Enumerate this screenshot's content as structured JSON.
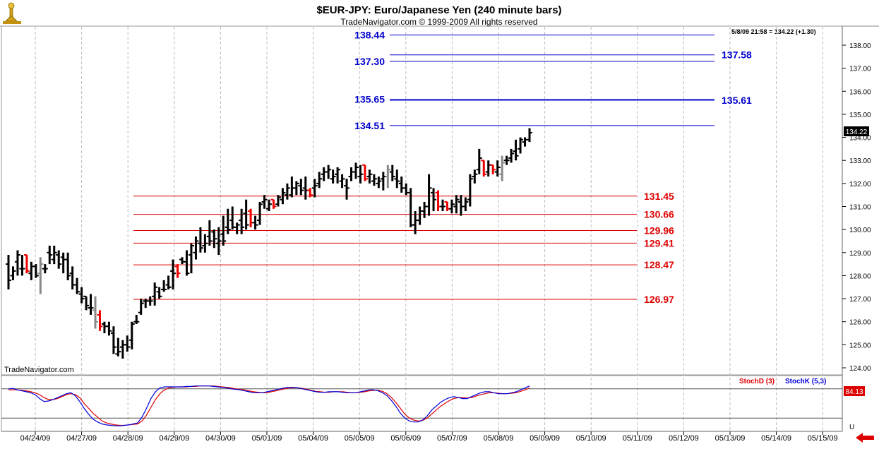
{
  "header": {
    "title": "$EUR-JPY:  Euro/Japanese Yen  (240 minute bars)",
    "copyright": "TradeNavigator.com © 1999-2009 All rights reserved",
    "readout": "5/8/09 21:58 = 134.22 (+1.30)",
    "watermark": "TradeNavigator.com"
  },
  "colors": {
    "blue_level": "#0000cc",
    "red_level": "#dd0000",
    "bar_up": "#000000",
    "bar_down": "#ee0000",
    "bar_neutral": "#888888",
    "grid": "#bbbbbb",
    "stoch_d": "#dd0000",
    "stoch_k": "#0000dd"
  },
  "chart_data": {
    "type": "ohlc",
    "y_axis": {
      "min": 123.6,
      "max": 138.5,
      "ticks": [
        "124.00",
        "125.00",
        "126.00",
        "127.00",
        "128.00",
        "129.00",
        "130.00",
        "131.00",
        "132.00",
        "133.00",
        "134.00",
        "135.00",
        "136.00",
        "137.00",
        "138.00"
      ]
    },
    "x_labels": [
      "04/24/09",
      "04/27/09",
      "04/28/09",
      "04/29/09",
      "04/30/09",
      "05/01/09",
      "05/04/09",
      "05/05/09",
      "05/06/09",
      "05/07/09",
      "05/08/09",
      "05/09/09",
      "05/10/09",
      "05/11/09",
      "05/12/09",
      "05/13/09",
      "05/14/09",
      "05/15/09"
    ],
    "last_price": "134.22",
    "bars": [
      [
        128.5,
        128.9,
        127.4,
        127.8,
        "k"
      ],
      [
        128.0,
        128.4,
        127.8,
        128.2,
        "k"
      ],
      [
        128.6,
        129.1,
        128.0,
        128.9,
        "k"
      ],
      [
        128.3,
        128.9,
        128.0,
        128.3,
        "k"
      ],
      [
        128.9,
        128.9,
        128.1,
        128.2,
        "r"
      ],
      [
        128.1,
        128.6,
        127.8,
        128.4,
        "k"
      ],
      [
        128.4,
        128.5,
        127.9,
        128.0,
        "k"
      ],
      [
        128.1,
        128.8,
        127.2,
        128.5,
        "g"
      ],
      [
        128.3,
        128.5,
        128.1,
        128.3,
        "k"
      ],
      [
        129.0,
        129.3,
        128.5,
        128.9,
        "k"
      ],
      [
        128.7,
        129.3,
        128.5,
        129.0,
        "k"
      ],
      [
        128.9,
        129.1,
        128.3,
        128.5,
        "k"
      ],
      [
        128.8,
        129.0,
        128.1,
        128.7,
        "k"
      ],
      [
        128.7,
        129.0,
        127.8,
        128.0,
        "k"
      ],
      [
        128.1,
        128.4,
        127.4,
        127.6,
        "k"
      ],
      [
        127.6,
        127.9,
        127.2,
        127.3,
        "k"
      ],
      [
        127.2,
        127.5,
        126.8,
        127.0,
        "k"
      ],
      [
        127.1,
        127.1,
        126.5,
        126.7,
        "k"
      ],
      [
        126.6,
        127.2,
        126.3,
        126.6,
        "k"
      ],
      [
        126.5,
        127.1,
        125.7,
        126.0,
        "g"
      ],
      [
        126.3,
        126.5,
        125.6,
        125.8,
        "r"
      ],
      [
        125.9,
        126.0,
        125.5,
        125.8,
        "k"
      ],
      [
        125.8,
        126.0,
        125.4,
        125.6,
        "k"
      ],
      [
        125.5,
        125.8,
        124.6,
        124.9,
        "k"
      ],
      [
        124.6,
        125.3,
        124.5,
        124.7,
        "k"
      ],
      [
        124.9,
        125.2,
        124.4,
        125.0,
        "k"
      ],
      [
        125.0,
        125.4,
        124.7,
        124.9,
        "k"
      ],
      [
        125.2,
        126.0,
        124.8,
        125.9,
        "k"
      ],
      [
        126.0,
        126.3,
        125.9,
        126.0,
        "k"
      ],
      [
        126.4,
        127.0,
        126.3,
        126.8,
        "k"
      ],
      [
        126.9,
        127.0,
        126.6,
        126.9,
        "k"
      ],
      [
        126.9,
        127.1,
        126.7,
        126.9,
        "k"
      ],
      [
        127.1,
        127.7,
        126.7,
        127.5,
        "k"
      ],
      [
        127.3,
        127.5,
        127.0,
        127.1,
        "k"
      ],
      [
        127.4,
        127.8,
        127.3,
        127.4,
        "k"
      ],
      [
        127.6,
        128.0,
        127.4,
        127.5,
        "k"
      ],
      [
        128.2,
        128.7,
        127.4,
        128.1,
        "k"
      ],
      [
        128.4,
        128.5,
        127.9,
        128.1,
        "r"
      ],
      [
        128.7,
        128.8,
        128.5,
        128.6,
        "k"
      ],
      [
        128.6,
        129.1,
        128.0,
        128.1,
        "k"
      ],
      [
        128.9,
        129.4,
        128.1,
        129.3,
        "k"
      ],
      [
        129.0,
        129.7,
        128.7,
        129.5,
        "k"
      ],
      [
        129.4,
        130.1,
        129.0,
        129.2,
        "k"
      ],
      [
        129.3,
        129.8,
        129.0,
        129.4,
        "k"
      ],
      [
        129.7,
        130.4,
        129.3,
        129.5,
        "k"
      ],
      [
        129.9,
        130.0,
        129.2,
        129.6,
        "k"
      ],
      [
        129.4,
        130.1,
        128.9,
        129.5,
        "k"
      ],
      [
        129.8,
        130.6,
        129.3,
        129.5,
        "k"
      ],
      [
        130.1,
        130.9,
        129.8,
        130.0,
        "k"
      ],
      [
        130.4,
        131.0,
        130.0,
        130.1,
        "k"
      ],
      [
        130.1,
        130.3,
        129.8,
        130.2,
        "k"
      ],
      [
        130.4,
        130.9,
        129.8,
        130.1,
        "k"
      ],
      [
        130.7,
        131.3,
        130.0,
        130.2,
        "k"
      ],
      [
        130.8,
        130.9,
        130.1,
        130.3,
        "r"
      ],
      [
        130.3,
        130.6,
        130.0,
        130.2,
        "k"
      ],
      [
        130.4,
        131.2,
        130.2,
        131.1,
        "k"
      ],
      [
        131.2,
        131.5,
        130.9,
        131.3,
        "k"
      ],
      [
        130.9,
        131.3,
        130.8,
        131.1,
        "k"
      ],
      [
        131.3,
        131.3,
        130.9,
        131.0,
        "r"
      ],
      [
        131.1,
        131.5,
        131.0,
        131.4,
        "k"
      ],
      [
        131.3,
        131.8,
        131.1,
        131.6,
        "k"
      ],
      [
        131.5,
        132.0,
        131.3,
        131.8,
        "k"
      ],
      [
        131.5,
        132.3,
        131.4,
        131.8,
        "k"
      ],
      [
        131.8,
        132.1,
        131.5,
        132.0,
        "k"
      ],
      [
        131.9,
        132.2,
        131.5,
        131.7,
        "k"
      ],
      [
        131.8,
        132.3,
        131.3,
        131.7,
        "k"
      ],
      [
        131.7,
        131.8,
        131.4,
        131.5,
        "r"
      ],
      [
        131.8,
        132.2,
        131.4,
        131.9,
        "k"
      ],
      [
        132.0,
        132.5,
        131.8,
        132.2,
        "k"
      ],
      [
        132.4,
        132.7,
        132.1,
        132.5,
        "k"
      ],
      [
        132.5,
        132.8,
        132.2,
        132.6,
        "k"
      ],
      [
        132.2,
        132.6,
        132.0,
        132.3,
        "k"
      ],
      [
        132.4,
        132.7,
        132.0,
        132.6,
        "k"
      ],
      [
        132.1,
        132.4,
        131.8,
        132.2,
        "k"
      ],
      [
        131.9,
        132.2,
        131.3,
        131.8,
        "k"
      ],
      [
        132.3,
        132.7,
        132.1,
        132.5,
        "k"
      ],
      [
        132.5,
        132.9,
        132.2,
        132.7,
        "k"
      ],
      [
        132.3,
        132.8,
        132.0,
        132.4,
        "k"
      ],
      [
        132.8,
        132.8,
        132.1,
        132.2,
        "r"
      ],
      [
        132.3,
        132.6,
        132.0,
        132.4,
        "k"
      ],
      [
        132.1,
        132.4,
        131.9,
        132.2,
        "k"
      ],
      [
        132.0,
        132.3,
        131.8,
        132.1,
        "k"
      ],
      [
        132.2,
        132.5,
        131.7,
        132.3,
        "k"
      ],
      [
        132.3,
        132.8,
        131.8,
        132.6,
        "g"
      ],
      [
        132.5,
        132.8,
        132.1,
        132.3,
        "k"
      ],
      [
        132.2,
        132.6,
        131.8,
        132.1,
        "k"
      ],
      [
        132.0,
        132.3,
        131.6,
        131.8,
        "k"
      ],
      [
        131.8,
        132.0,
        131.5,
        131.6,
        "k"
      ],
      [
        131.6,
        131.8,
        130.1,
        130.2,
        "k"
      ],
      [
        130.2,
        130.8,
        129.8,
        130.4,
        "k"
      ],
      [
        130.4,
        131.0,
        130.2,
        130.8,
        "k"
      ],
      [
        130.8,
        131.2,
        130.5,
        131.0,
        "k"
      ],
      [
        131.0,
        132.4,
        130.6,
        131.8,
        "k"
      ],
      [
        131.6,
        131.8,
        130.8,
        131.3,
        "k"
      ],
      [
        131.6,
        131.7,
        130.8,
        131.0,
        "r"
      ],
      [
        131.0,
        131.3,
        130.8,
        131.0,
        "k"
      ],
      [
        131.2,
        131.2,
        130.8,
        130.9,
        "r"
      ],
      [
        130.9,
        131.3,
        130.7,
        131.1,
        "k"
      ],
      [
        131.0,
        131.5,
        130.7,
        131.3,
        "k"
      ],
      [
        131.2,
        131.5,
        130.6,
        131.0,
        "k"
      ],
      [
        131.0,
        131.4,
        130.8,
        131.2,
        "k"
      ],
      [
        131.3,
        132.4,
        131.0,
        132.2,
        "k"
      ],
      [
        132.3,
        132.6,
        132.0,
        132.4,
        "k"
      ],
      [
        132.6,
        133.5,
        132.4,
        133.1,
        "k"
      ],
      [
        133.0,
        133.0,
        132.3,
        132.4,
        "r"
      ],
      [
        132.5,
        133.0,
        132.3,
        132.8,
        "k"
      ],
      [
        132.8,
        132.8,
        132.4,
        132.6,
        "r"
      ],
      [
        132.5,
        133.0,
        132.3,
        132.7,
        "k"
      ],
      [
        132.4,
        133.2,
        132.1,
        132.9,
        "g"
      ],
      [
        133.0,
        133.2,
        132.8,
        133.0,
        "k"
      ],
      [
        133.1,
        133.5,
        132.9,
        133.3,
        "k"
      ],
      [
        133.4,
        133.9,
        133.0,
        133.2,
        "k"
      ],
      [
        133.5,
        134.0,
        133.3,
        133.9,
        "k"
      ],
      [
        133.8,
        134.0,
        133.6,
        133.9,
        "k"
      ],
      [
        133.9,
        134.4,
        133.8,
        134.2,
        "k"
      ]
    ],
    "blue_levels": [
      {
        "value": 138.44,
        "label": "138.44",
        "side": "left"
      },
      {
        "value": 137.58,
        "label": "137.58",
        "side": "right"
      },
      {
        "value": 137.3,
        "label": "137.30",
        "side": "left"
      },
      {
        "value": 135.65,
        "label": "135.65",
        "side": "left"
      },
      {
        "value": 135.61,
        "label": "135.61",
        "side": "right"
      },
      {
        "value": 134.51,
        "label": "134.51",
        "side": "left"
      }
    ],
    "red_levels": [
      {
        "value": 131.45,
        "label": "131.45"
      },
      {
        "value": 130.66,
        "label": "130.66"
      },
      {
        "value": 129.96,
        "label": "129.96"
      },
      {
        "value": 129.41,
        "label": "129.41"
      },
      {
        "value": 128.47,
        "label": "128.47"
      },
      {
        "value": 126.97,
        "label": "126.97"
      }
    ],
    "stoch": {
      "legend_d": "StochD (3)",
      "legend_k": "StochK (5,3)",
      "value_label": "84.13",
      "bottom_label": "U",
      "ref_levels": [
        80,
        20
      ],
      "k": [
        80,
        81,
        78,
        76,
        74,
        72,
        68,
        60,
        54,
        55,
        58,
        62,
        66,
        70,
        72,
        66,
        54,
        40,
        28,
        18,
        12,
        8,
        6,
        5,
        4,
        4,
        5,
        6,
        8,
        10,
        22,
        40,
        60,
        74,
        82,
        84,
        84,
        84,
        84,
        84,
        85,
        85,
        86,
        86,
        86,
        86,
        85,
        84,
        83,
        82,
        80,
        79,
        78,
        76,
        74,
        72,
        72,
        72,
        74,
        76,
        78,
        80,
        82,
        83,
        83,
        82,
        80,
        78,
        76,
        74,
        73,
        73,
        74,
        74,
        74,
        73,
        72,
        72,
        72,
        74,
        76,
        78,
        78,
        76,
        72,
        66,
        56,
        44,
        30,
        20,
        14,
        12,
        12,
        16,
        24,
        36,
        44,
        52,
        58,
        62,
        64,
        62,
        60,
        60,
        64,
        68,
        72,
        74,
        74,
        72,
        70,
        70,
        70,
        72,
        74,
        78,
        82,
        86
      ],
      "d": [
        78,
        78,
        78,
        77,
        76,
        74,
        72,
        68,
        62,
        58,
        58,
        60,
        64,
        68,
        70,
        68,
        62,
        50,
        40,
        30,
        22,
        14,
        10,
        8,
        6,
        5,
        5,
        6,
        7,
        8,
        14,
        26,
        42,
        58,
        70,
        78,
        82,
        83,
        84,
        84,
        84,
        85,
        85,
        86,
        86,
        86,
        86,
        85,
        84,
        83,
        82,
        80,
        79,
        78,
        76,
        74,
        73,
        72,
        72,
        74,
        76,
        78,
        80,
        82,
        82,
        82,
        81,
        79,
        77,
        75,
        74,
        73,
        73,
        74,
        74,
        74,
        73,
        72,
        72,
        73,
        74,
        76,
        77,
        77,
        75,
        70,
        62,
        52,
        40,
        28,
        20,
        16,
        14,
        15,
        20,
        28,
        36,
        44,
        50,
        56,
        60,
        62,
        62,
        61,
        62,
        65,
        68,
        70,
        72,
        72,
        71,
        70,
        70,
        71,
        72,
        75,
        78,
        82
      ]
    }
  }
}
